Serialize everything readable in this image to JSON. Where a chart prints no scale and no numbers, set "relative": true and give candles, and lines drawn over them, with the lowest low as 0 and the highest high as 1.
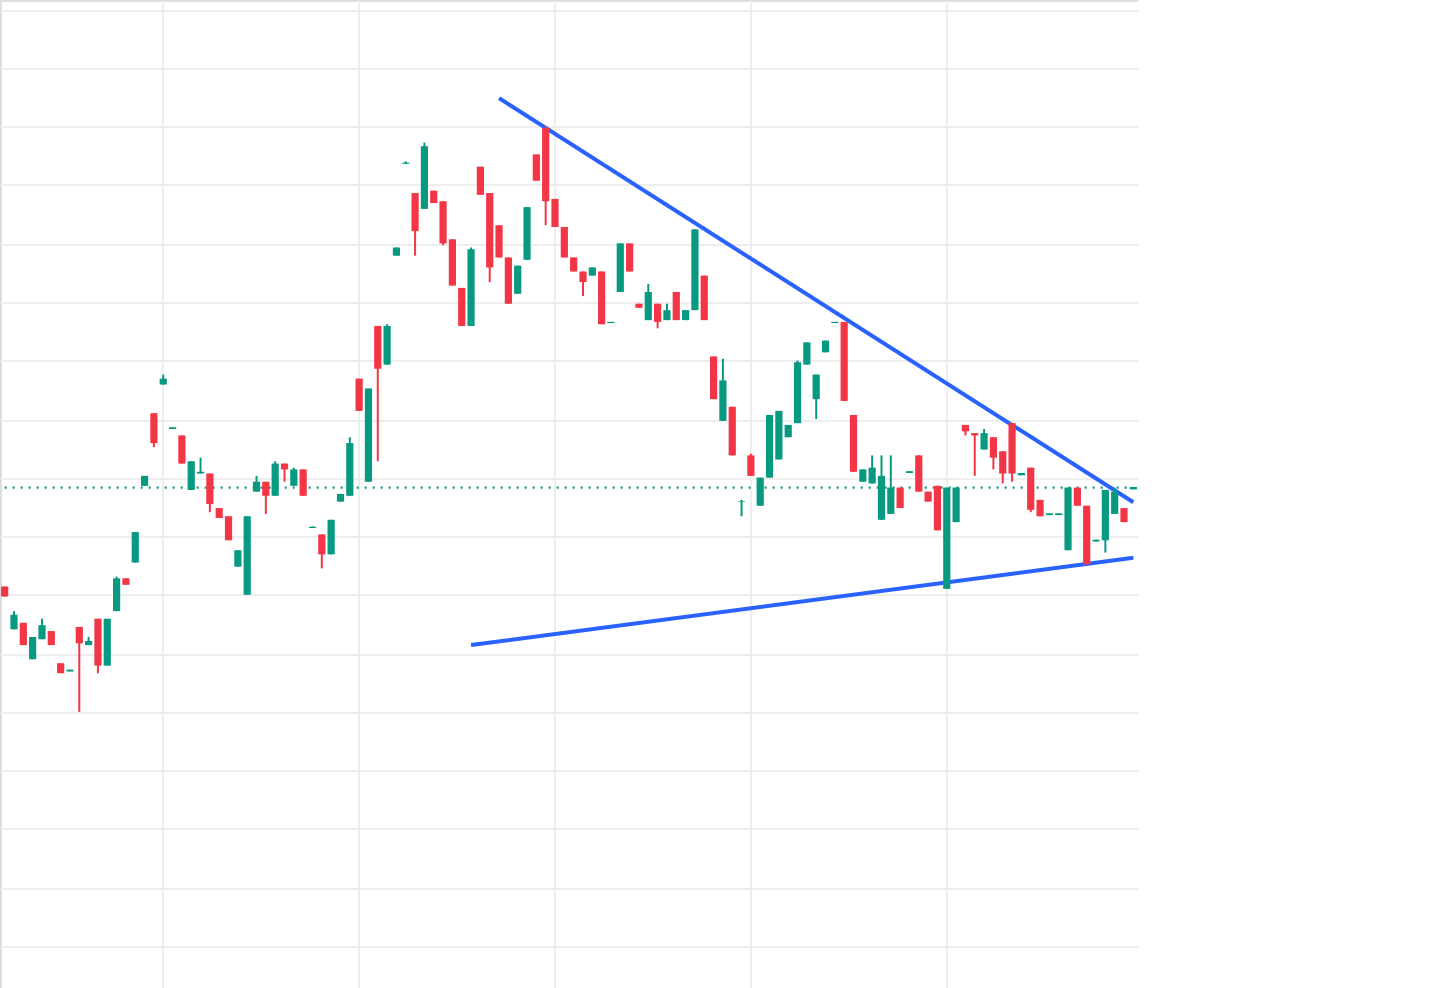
{
  "chart_data": {
    "type": "candlestick",
    "relative": true,
    "grid": true,
    "categories": [
      null,
      null,
      null,
      null,
      null,
      null,
      null,
      null,
      null,
      null,
      null,
      null,
      null,
      null,
      null,
      null,
      null,
      null,
      null,
      null,
      null,
      null,
      null,
      null,
      null,
      null,
      null,
      null,
      null,
      null,
      null,
      null,
      null,
      null,
      null,
      null,
      null,
      null,
      null,
      null,
      null,
      null,
      null,
      null,
      null,
      null,
      null,
      null,
      null,
      null,
      null,
      null,
      null,
      null,
      null,
      null,
      null,
      null,
      null,
      null,
      null,
      null,
      null,
      null,
      null,
      null,
      null,
      null,
      null,
      null,
      null,
      null,
      null,
      null,
      null,
      null,
      null,
      null,
      null,
      null,
      null,
      null,
      null,
      null,
      null,
      null,
      null,
      null,
      null,
      null,
      null,
      null,
      null,
      null,
      null,
      null,
      null,
      null,
      null,
      null,
      null,
      null,
      null,
      null,
      null,
      null,
      null,
      null,
      null,
      null,
      null,
      null,
      null,
      null,
      null,
      null,
      null,
      null,
      null,
      null,
      null,
      null
    ],
    "ohlc": [
      [
        0.214,
        0.214,
        0.197,
        0.197
      ],
      [
        0.141,
        0.172,
        0.141,
        0.166
      ],
      [
        0.152,
        0.152,
        0.114,
        0.114
      ],
      [
        0.09,
        0.128,
        0.09,
        0.128
      ],
      [
        0.124,
        0.159,
        0.124,
        0.148
      ],
      [
        0.138,
        0.138,
        0.114,
        0.114
      ],
      [
        0.083,
        0.083,
        0.066,
        0.066
      ],
      [
        0.069,
        0.072,
        0.069,
        0.072
      ],
      [
        0.145,
        0.145,
        0,
        0.117
      ],
      [
        0.114,
        0.128,
        0.114,
        0.121
      ],
      [
        0.159,
        0.159,
        0.066,
        0.079
      ],
      [
        0.079,
        0.159,
        0.079,
        0.159
      ],
      [
        0.172,
        0.231,
        0.172,
        0.228
      ],
      [
        0.228,
        0.228,
        0.217,
        0.217
      ],
      [
        0.255,
        0.307,
        0.255,
        0.307
      ],
      [
        0.386,
        0.403,
        0.386,
        0.403
      ],
      [
        0.51,
        0.51,
        0.452,
        0.459
      ],
      [
        0.559,
        0.576,
        0.559,
        0.569
      ],
      [
        0.483,
        0.486,
        0.483,
        0.486
      ],
      [
        0.472,
        0.472,
        0.424,
        0.424
      ],
      [
        0.379,
        0.428,
        0.379,
        0.428
      ],
      [
        0.407,
        0.434,
        0.407,
        0.41
      ],
      [
        0.407,
        0.407,
        0.341,
        0.355
      ],
      [
        0.348,
        0.348,
        0.331,
        0.331
      ],
      [
        0.334,
        0.334,
        0.293,
        0.293
      ],
      [
        0.248,
        0.276,
        0.248,
        0.276
      ],
      [
        0.2,
        0.334,
        0.2,
        0.334
      ],
      [
        0.376,
        0.403,
        0.376,
        0.393
      ],
      [
        0.393,
        0.393,
        0.338,
        0.369
      ],
      [
        0.369,
        0.428,
        0.369,
        0.424
      ],
      [
        0.424,
        0.424,
        0.393,
        0.414
      ],
      [
        0.386,
        0.417,
        0.386,
        0.414
      ],
      [
        0.414,
        0.414,
        0.369,
        0.369
      ],
      [
        0.314,
        0.317,
        0.314,
        0.316
      ],
      [
        0.303,
        0.303,
        0.245,
        0.269
      ],
      [
        0.269,
        0.328,
        0.269,
        0.328
      ],
      [
        0.359,
        0.372,
        0.359,
        0.372
      ],
      [
        0.369,
        0.469,
        0.369,
        0.459
      ],
      [
        0.569,
        0.569,
        0.514,
        0.514
      ],
      [
        0.393,
        0.552,
        0.393,
        0.552
      ],
      [
        0.659,
        0.659,
        0.428,
        0.586
      ],
      [
        0.593,
        0.662,
        0.593,
        0.659
      ],
      [
        0.779,
        0.793,
        0.779,
        0.793
      ],
      [
        0.936,
        0.94,
        0.936,
        0.938
      ],
      [
        0.886,
        0.886,
        0.779,
        0.821
      ],
      [
        0.859,
        0.972,
        0.859,
        0.966
      ],
      [
        0.89,
        0.89,
        0.869,
        0.869
      ],
      [
        0.872,
        0.872,
        0.797,
        0.8
      ],
      [
        0.807,
        0.807,
        0.728,
        0.728
      ],
      [
        0.724,
        0.724,
        0.659,
        0.659
      ],
      [
        0.659,
        0.793,
        0.659,
        0.79
      ],
      [
        0.931,
        0.931,
        0.883,
        0.883
      ],
      [
        0.886,
        0.886,
        0.734,
        0.759
      ],
      [
        0.831,
        0.831,
        0.776,
        0.776
      ],
      [
        0.776,
        0.776,
        0.697,
        0.697
      ],
      [
        0.714,
        0.762,
        0.714,
        0.762
      ],
      [
        0.772,
        0.862,
        0.772,
        0.862
      ],
      [
        0.952,
        0.952,
        0.907,
        0.907
      ],
      [
        0.997,
        1,
        0.831,
        0.872
      ],
      [
        0.876,
        0.876,
        0.828,
        0.828
      ],
      [
        0.828,
        0.828,
        0.776,
        0.776
      ],
      [
        0.776,
        0.776,
        0.752,
        0.752
      ],
      [
        0.752,
        0.752,
        0.71,
        0.734
      ],
      [
        0.745,
        0.759,
        0.745,
        0.759
      ],
      [
        0.752,
        0.752,
        0.662,
        0.662
      ],
      [
        0.664,
        0.666,
        0.664,
        0.666
      ],
      [
        0.717,
        0.8,
        0.717,
        0.8
      ],
      [
        0.8,
        0.8,
        0.752,
        0.752
      ],
      [
        0.697,
        0.697,
        0.69,
        0.69
      ],
      [
        0.669,
        0.731,
        0.669,
        0.717
      ],
      [
        0.697,
        0.697,
        0.655,
        0.666
      ],
      [
        0.669,
        0.697,
        0.669,
        0.686
      ],
      [
        0.717,
        0.717,
        0.669,
        0.669
      ],
      [
        0.669,
        0.686,
        0.669,
        0.686
      ],
      [
        0.686,
        0.824,
        0.686,
        0.824
      ],
      [
        0.745,
        0.745,
        0.669,
        0.669
      ],
      [
        0.607,
        0.607,
        0.534,
        0.534
      ],
      [
        0.497,
        0.603,
        0.497,
        0.566
      ],
      [
        0.521,
        0.521,
        0.438,
        0.438
      ],
      [
        0.359,
        0.362,
        0.334,
        0.36
      ],
      [
        0.438,
        0.441,
        0.403,
        0.403
      ],
      [
        0.352,
        0.4,
        0.352,
        0.4
      ],
      [
        0.4,
        0.507,
        0.4,
        0.507
      ],
      [
        0.431,
        0.514,
        0.431,
        0.514
      ],
      [
        0.469,
        0.49,
        0.469,
        0.49
      ],
      [
        0.493,
        0.6,
        0.493,
        0.597
      ],
      [
        0.593,
        0.631,
        0.593,
        0.631
      ],
      [
        0.534,
        0.576,
        0.5,
        0.576
      ],
      [
        0.614,
        0.634,
        0.614,
        0.634
      ],
      [
        0.664,
        0.666,
        0.664,
        0.666
      ],
      [
        0.666,
        0.666,
        0.531,
        0.531
      ],
      [
        0.507,
        0.507,
        0.41,
        0.41
      ],
      [
        0.393,
        0.414,
        0.393,
        0.414
      ],
      [
        0.39,
        0.438,
        0.39,
        0.417
      ],
      [
        0.328,
        0.438,
        0.328,
        0.403
      ],
      [
        0.338,
        0.438,
        0.338,
        0.383
      ],
      [
        0.383,
        0.383,
        0.348,
        0.348
      ],
      [
        0.408,
        0.411,
        0.408,
        0.411
      ],
      [
        0.438,
        0.438,
        0.376,
        0.376
      ],
      [
        0.376,
        0.376,
        0.359,
        0.359
      ],
      [
        0.386,
        0.386,
        0.31,
        0.31
      ],
      [
        0.21,
        0.383,
        0.21,
        0.383
      ],
      [
        0.324,
        0.383,
        0.324,
        0.383
      ],
      [
        0.49,
        0.49,
        0.472,
        0.479
      ],
      [
        0.476,
        0.476,
        0.403,
        0.472
      ],
      [
        0.448,
        0.483,
        0.448,
        0.476
      ],
      [
        0.469,
        0.469,
        0.414,
        0.434
      ],
      [
        0.445,
        0.445,
        0.39,
        0.407
      ],
      [
        0.493,
        0.493,
        0.393,
        0.407
      ],
      [
        0.404,
        0.408,
        0.404,
        0.408
      ],
      [
        0.417,
        0.417,
        0.341,
        0.345
      ],
      [
        0.362,
        0.362,
        0.334,
        0.334
      ],
      [
        0.336,
        0.339,
        0.336,
        0.339
      ],
      [
        0.336,
        0.339,
        0.336,
        0.339
      ],
      [
        0.276,
        0.383,
        0.276,
        0.383
      ],
      [
        0.383,
        0.383,
        0.352,
        0.352
      ],
      [
        0.352,
        0.352,
        0.252,
        0.252
      ],
      [
        0.291,
        0.294,
        0.291,
        0.294
      ],
      [
        0.293,
        0.379,
        0.272,
        0.379
      ],
      [
        0.338,
        0.383,
        0.338,
        0.376
      ],
      [
        0.348,
        0.348,
        0.324,
        0.324
      ],
      [
        0.38,
        0.384,
        0.38,
        0.384
      ]
    ],
    "colors": [
      "#f23645",
      "#089981",
      "#f23645",
      "#089981",
      "#089981",
      "#f23645",
      "#f23645",
      "#089981",
      "#f23645",
      "#089981",
      "#f23645",
      "#089981",
      "#089981",
      "#f23645",
      "#089981",
      "#089981",
      "#f23645",
      "#089981",
      "#089981",
      "#f23645",
      "#089981",
      "#089981",
      "#f23645",
      "#f23645",
      "#f23645",
      "#089981",
      "#089981",
      "#089981",
      "#f23645",
      "#089981",
      "#f23645",
      "#089981",
      "#f23645",
      "#089981",
      "#f23645",
      "#089981",
      "#089981",
      "#089981",
      "#f23645",
      "#089981",
      "#f23645",
      "#089981",
      "#089981",
      "#089981",
      "#f23645",
      "#089981",
      "#f23645",
      "#f23645",
      "#f23645",
      "#f23645",
      "#089981",
      "#f23645",
      "#f23645",
      "#f23645",
      "#f23645",
      "#089981",
      "#089981",
      "#f23645",
      "#f23645",
      "#f23645",
      "#f23645",
      "#f23645",
      "#f23645",
      "#089981",
      "#f23645",
      "#089981",
      "#089981",
      "#f23645",
      "#f23645",
      "#089981",
      "#f23645",
      "#089981",
      "#f23645",
      "#089981",
      "#089981",
      "#f23645",
      "#f23645",
      "#089981",
      "#f23645",
      "#089981",
      "#f23645",
      "#089981",
      "#089981",
      "#089981",
      "#089981",
      "#089981",
      "#089981",
      "#089981",
      "#089981",
      "#089981",
      "#f23645",
      "#f23645",
      "#089981",
      "#089981",
      "#089981",
      "#089981",
      "#f23645",
      "#089981",
      "#f23645",
      "#f23645",
      "#f23645",
      "#089981",
      "#089981",
      "#f23645",
      "#f23645",
      "#089981",
      "#f23645",
      "#f23645",
      "#f23645",
      "#089981",
      "#f23645",
      "#f23645",
      "#089981",
      "#089981",
      "#089981",
      "#f23645",
      "#f23645",
      "#089981",
      "#089981",
      "#089981",
      "#f23645",
      "#089981"
    ],
    "series": [
      {
        "type": "line",
        "color": "#2962ff",
        "values": [
          null,
          null,
          null,
          null,
          null,
          null,
          null,
          null,
          null,
          null,
          null,
          null,
          null,
          null,
          null,
          null,
          null,
          null,
          null,
          null,
          null,
          null,
          null,
          null,
          null,
          null,
          null,
          null,
          null,
          null,
          null,
          null,
          null,
          null,
          null,
          null,
          null,
          null,
          null,
          null,
          null,
          null,
          null,
          null,
          null,
          null,
          null,
          null,
          null,
          null,
          null,
          null,
          null,
          1.048,
          null,
          null,
          null,
          null,
          null,
          null,
          null,
          null,
          null,
          null,
          null,
          null,
          null,
          null,
          null,
          null,
          null,
          null,
          null,
          null,
          null,
          null,
          null,
          null,
          null,
          null,
          null,
          null,
          null,
          null,
          null,
          null,
          null,
          null,
          null,
          null,
          null,
          null,
          null,
          null,
          null,
          null,
          null,
          null,
          null,
          null,
          null,
          null,
          null,
          null,
          null,
          null,
          null,
          null,
          null,
          null,
          null,
          null,
          null,
          null,
          null,
          null,
          null,
          null,
          null,
          null,
          null,
          0.358
        ]
      },
      {
        "type": "line",
        "color": "#2962ff",
        "values": [
          null,
          null,
          null,
          null,
          null,
          null,
          null,
          null,
          null,
          null,
          null,
          null,
          null,
          null,
          null,
          null,
          null,
          null,
          null,
          null,
          null,
          null,
          null,
          null,
          null,
          null,
          null,
          null,
          null,
          null,
          null,
          null,
          null,
          null,
          null,
          null,
          null,
          null,
          null,
          null,
          null,
          null,
          null,
          null,
          null,
          null,
          null,
          null,
          null,
          null,
          0.114,
          null,
          null,
          null,
          null,
          null,
          null,
          null,
          null,
          null,
          null,
          null,
          null,
          null,
          null,
          null,
          null,
          null,
          null,
          null,
          null,
          null,
          null,
          null,
          null,
          null,
          null,
          null,
          null,
          null,
          null,
          null,
          null,
          null,
          null,
          null,
          null,
          null,
          null,
          null,
          null,
          null,
          null,
          null,
          null,
          null,
          null,
          null,
          null,
          null,
          null,
          null,
          null,
          null,
          null,
          null,
          null,
          null,
          null,
          null,
          null,
          null,
          null,
          null,
          null,
          null,
          null,
          null,
          null,
          null,
          null,
          0.263
        ]
      }
    ],
    "ref_lines": [
      {
        "axis": "y",
        "value": 0.383,
        "color": "#089981",
        "line_style": "dotted"
      }
    ]
  }
}
